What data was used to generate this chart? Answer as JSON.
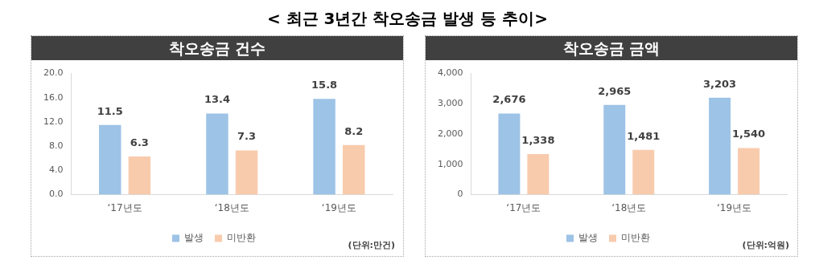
{
  "chart_data": [
    {
      "type": "bar",
      "title": "< 최근 3년간 착오송금 발생 등 추이>",
      "subtitle": "착오송금 건수",
      "categories": [
        "‘17년도",
        "‘18년도",
        "‘19년도"
      ],
      "series": [
        {
          "name": "발생",
          "color": "#9dc3e6",
          "values": [
            11.5,
            13.4,
            15.8
          ]
        },
        {
          "name": "미반환",
          "color": "#f8cbad",
          "values": [
            6.3,
            7.3,
            8.2
          ]
        }
      ],
      "ylim": [
        0,
        20
      ],
      "yticks": [
        {
          "value": 0,
          "label": "0.0"
        },
        {
          "value": 4,
          "label": "4.0"
        },
        {
          "value": 8,
          "label": "8.0"
        },
        {
          "value": 12,
          "label": "12.0"
        },
        {
          "value": 16,
          "label": "16.0"
        },
        {
          "value": 20,
          "label": "20.0"
        }
      ],
      "grid": false,
      "legend": "bottom",
      "data_labels": true,
      "annotations": [
        "(단위:만건)"
      ]
    },
    {
      "type": "bar",
      "subtitle": "착오송금 금액",
      "categories": [
        "‘17년도",
        "‘18년도",
        "‘19년도"
      ],
      "series": [
        {
          "name": "발생",
          "color": "#9dc3e6",
          "values": [
            2676,
            2965,
            3203
          ],
          "value_labels": [
            "2,676",
            "2,965",
            "3,203"
          ]
        },
        {
          "name": "미반환",
          "color": "#f8cbad",
          "values": [
            1338,
            1481,
            1540
          ],
          "value_labels": [
            "1,338",
            "1,481",
            "1,540"
          ]
        }
      ],
      "ylim": [
        0,
        4000
      ],
      "yticks": [
        0,
        {
          "value": 1000,
          "label": "1,000"
        },
        {
          "value": 2000,
          "label": "2,000"
        },
        {
          "value": 3000,
          "label": "3,000"
        },
        {
          "value": 4000,
          "label": "4,000"
        }
      ],
      "grid": false,
      "legend": "bottom",
      "annotations": [
        "(단위:억원)"
      ]
    }
  ]
}
